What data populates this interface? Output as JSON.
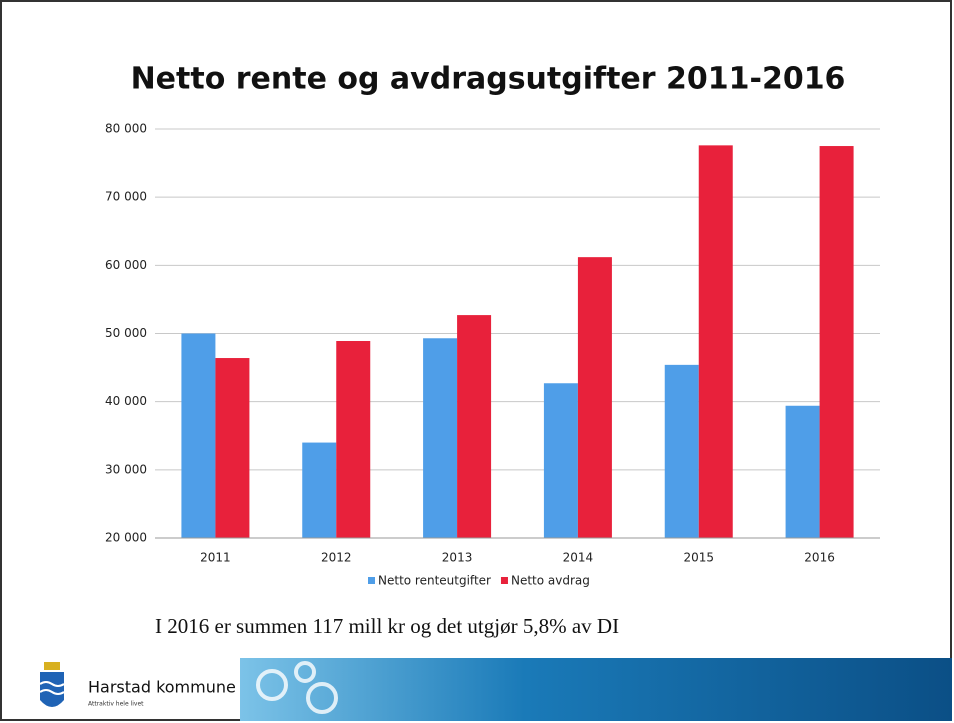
{
  "chart_data": {
    "type": "bar",
    "title": "Netto rente og avdragsutgifter 2011-2016",
    "categories": [
      "2011",
      "2012",
      "2013",
      "2014",
      "2015",
      "2016"
    ],
    "series": [
      {
        "name": "Netto renteutgifter",
        "color": "#4f9ee8",
        "values": [
          50000,
          34000,
          49300,
          42700,
          45400,
          39400
        ]
      },
      {
        "name": "Netto avdrag",
        "color": "#e8213b",
        "values": [
          46400,
          48900,
          52700,
          61200,
          77600,
          77500
        ]
      }
    ],
    "ylim": [
      20000,
      80000
    ],
    "yticks": [
      {
        "value": 20000,
        "label": "20 000"
      },
      {
        "value": 30000,
        "label": "30 000"
      },
      {
        "value": 40000,
        "label": "40 000"
      },
      {
        "value": 50000,
        "label": "50 000"
      },
      {
        "value": 60000,
        "label": "60 000"
      },
      {
        "value": 70000,
        "label": "70 000"
      },
      {
        "value": 80000,
        "label": "80 000"
      }
    ],
    "grid": true,
    "legend": "bottom",
    "annotation": "I 2016 er summen 117 mill kr og det utgjør 5,8% av DI"
  },
  "footer": {
    "organization": "Harstad kommune",
    "slogan": "Attraktiv hele livet"
  }
}
